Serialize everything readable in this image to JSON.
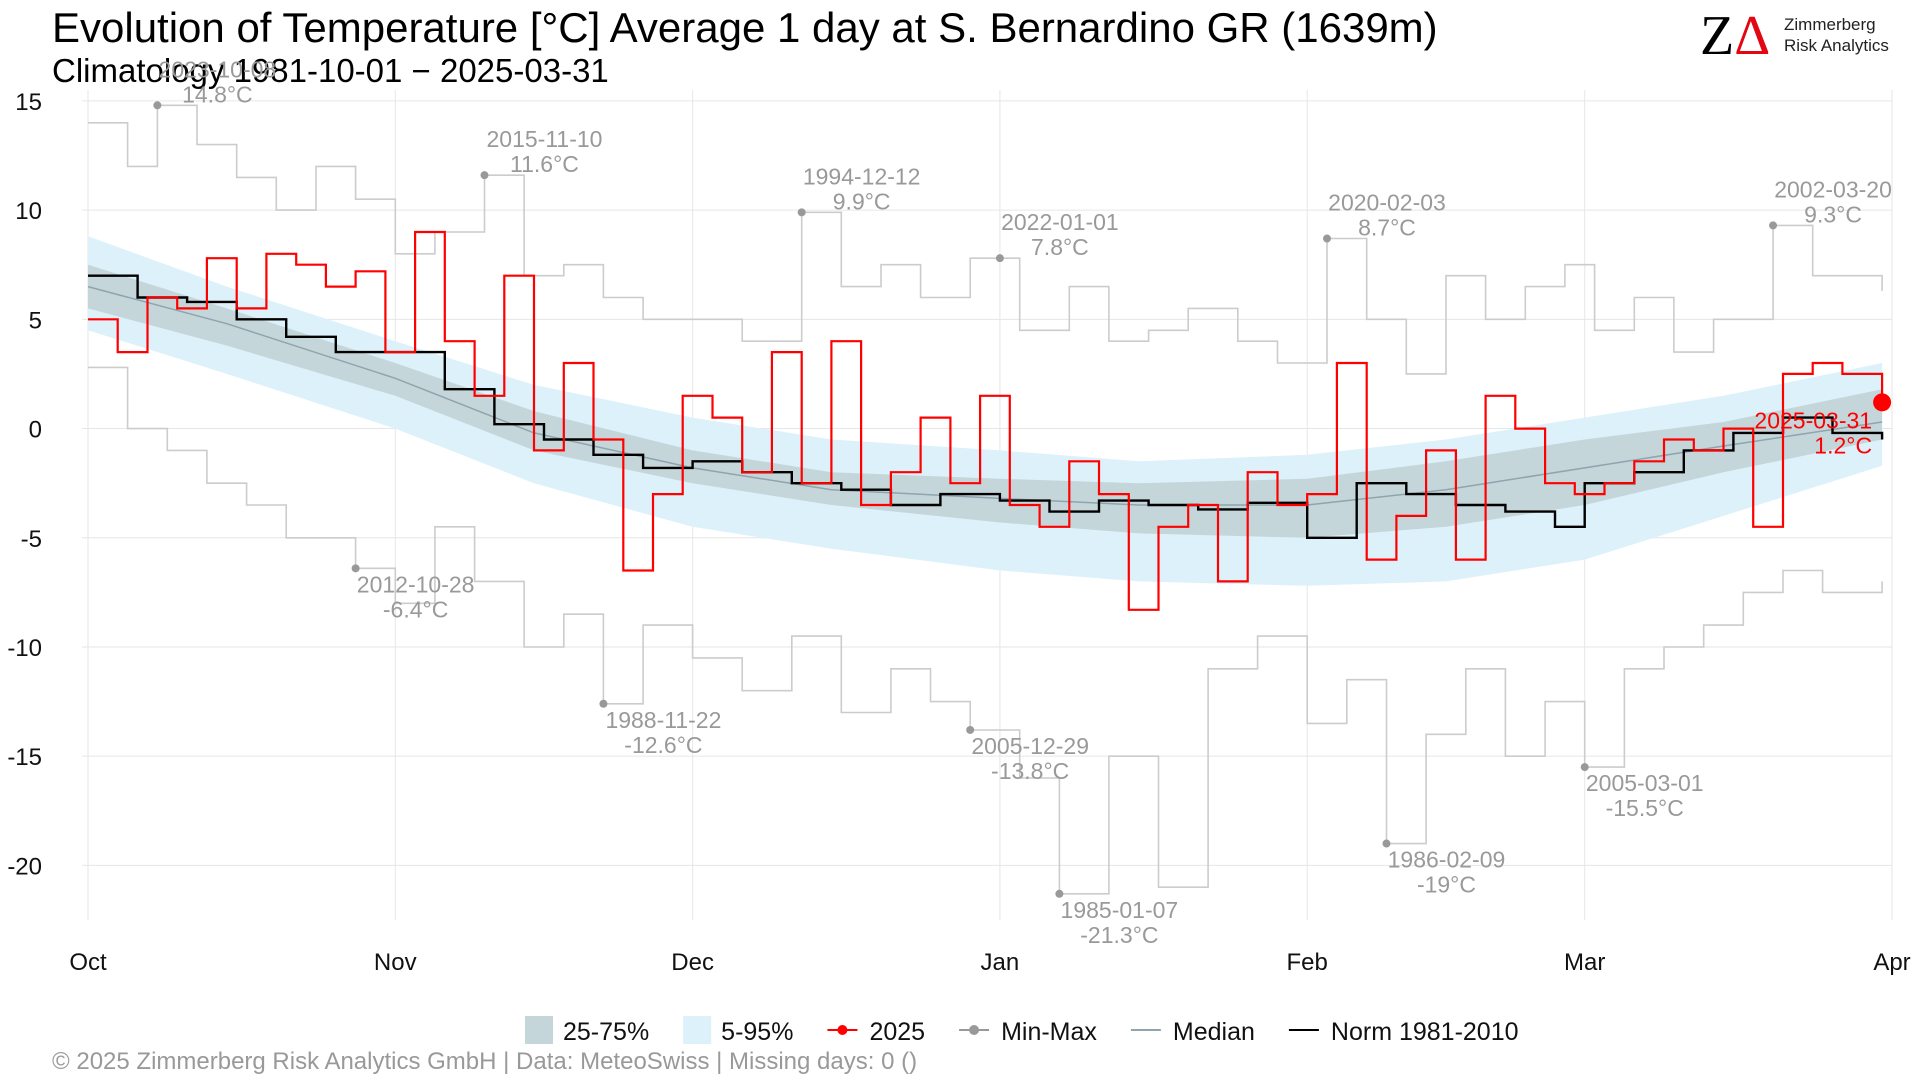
{
  "header": {
    "title": "Evolution of Temperature [°C] Average 1 day at S. Bernardino  GR (1639m)",
    "subtitle": "Climatology 1981-10-01 − 2025-03-31"
  },
  "logo": {
    "mark_z": "Z",
    "mark_a": "Δ",
    "line1": "Zimmerberg",
    "line2": "Risk Analytics"
  },
  "footer": {
    "text": "©  2025 Zimmerberg Risk Analytics GmbH | Data: MeteoSwiss | Missing days: 0 ()"
  },
  "colors": {
    "band_25_75": "#c5d6db",
    "band_5_95": "#dcf1fa",
    "year_2025": "#ff0000",
    "minmax": "#999999",
    "median": "#8fa4ad",
    "norm": "#000000",
    "grid": "#e6e6e6"
  },
  "chart_data": {
    "type": "line",
    "step": true,
    "title": "Evolution of Temperature [°C] Average 1 day at S. Bernardino  GR (1639m)",
    "xlabel": "",
    "ylabel": "",
    "x_start": "2024-10-01",
    "x_end": "2025-04-01",
    "ylim": [
      -22.5,
      15.5
    ],
    "y_ticks": [
      15,
      10,
      5,
      0,
      -5,
      -10,
      -15,
      -20
    ],
    "x_ticks": [
      {
        "date": "2024-10-01",
        "label": "Oct"
      },
      {
        "date": "2024-11-01",
        "label": "Nov"
      },
      {
        "date": "2024-12-01",
        "label": "Dec"
      },
      {
        "date": "2025-01-01",
        "label": "Jan"
      },
      {
        "date": "2025-02-01",
        "label": "Feb"
      },
      {
        "date": "2025-03-01",
        "label": "Mar"
      },
      {
        "date": "2025-04-01",
        "label": "Apr"
      }
    ],
    "grid": true,
    "legend_position": "bottom",
    "legend": [
      {
        "key": "band_25_75",
        "label": "25-75%",
        "kind": "box"
      },
      {
        "key": "band_5_95",
        "label": "5-95%",
        "kind": "box"
      },
      {
        "key": "year_2025",
        "label": "2025",
        "kind": "line-dot"
      },
      {
        "key": "minmax",
        "label": "Min-Max",
        "kind": "line-dot"
      },
      {
        "key": "median",
        "label": "Median",
        "kind": "line"
      },
      {
        "key": "norm",
        "label": "Norm 1981-2010",
        "kind": "line"
      }
    ],
    "series": [
      {
        "key": "p95",
        "dates": [
          "2024-10-01",
          "2024-10-15",
          "2024-11-01",
          "2024-11-15",
          "2024-12-01",
          "2024-12-15",
          "2025-01-01",
          "2025-01-15",
          "2025-02-01",
          "2025-02-15",
          "2025-03-01",
          "2025-03-15",
          "2025-03-31"
        ],
        "values": [
          8.8,
          6.5,
          4.0,
          2.0,
          0.5,
          -0.5,
          -1.0,
          -1.5,
          -1.2,
          -0.5,
          0.5,
          1.5,
          3.0
        ]
      },
      {
        "key": "p75",
        "dates": [
          "2024-10-01",
          "2024-10-15",
          "2024-11-01",
          "2024-11-15",
          "2024-12-01",
          "2024-12-15",
          "2025-01-01",
          "2025-01-15",
          "2025-02-01",
          "2025-02-15",
          "2025-03-01",
          "2025-03-15",
          "2025-03-31"
        ],
        "values": [
          7.5,
          5.5,
          3.0,
          0.8,
          -1.0,
          -2.0,
          -2.3,
          -2.5,
          -2.3,
          -1.5,
          -0.5,
          0.3,
          1.8
        ]
      },
      {
        "key": "p25",
        "dates": [
          "2024-10-01",
          "2024-10-15",
          "2024-11-01",
          "2024-11-15",
          "2024-12-01",
          "2024-12-15",
          "2025-01-01",
          "2025-01-15",
          "2025-02-01",
          "2025-02-15",
          "2025-03-01",
          "2025-03-15",
          "2025-03-31"
        ],
        "values": [
          5.5,
          3.8,
          1.5,
          -1.0,
          -2.5,
          -3.5,
          -4.3,
          -4.8,
          -5.0,
          -4.5,
          -3.5,
          -2.0,
          -0.5
        ]
      },
      {
        "key": "p5",
        "dates": [
          "2024-10-01",
          "2024-10-15",
          "2024-11-01",
          "2024-11-15",
          "2024-12-01",
          "2024-12-15",
          "2025-01-01",
          "2025-01-15",
          "2025-02-01",
          "2025-02-15",
          "2025-03-01",
          "2025-03-15",
          "2025-03-31"
        ],
        "values": [
          4.5,
          2.5,
          0.0,
          -2.5,
          -4.5,
          -5.5,
          -6.5,
          -7.0,
          -7.2,
          -7.0,
          -6.0,
          -4.0,
          -1.7
        ]
      },
      {
        "key": "median",
        "name": "Median",
        "dates": [
          "2024-10-01",
          "2024-10-15",
          "2024-11-01",
          "2024-11-15",
          "2024-12-01",
          "2024-12-15",
          "2025-01-01",
          "2025-01-15",
          "2025-02-01",
          "2025-02-15",
          "2025-03-01",
          "2025-03-15",
          "2025-03-31"
        ],
        "values": [
          6.5,
          4.8,
          2.3,
          -0.2,
          -1.8,
          -2.8,
          -3.2,
          -3.5,
          -3.5,
          -2.8,
          -1.8,
          -0.8,
          0.3
        ]
      },
      {
        "key": "norm",
        "name": "Norm 1981-2010",
        "dates": [
          "2024-10-01",
          "2024-10-06",
          "2024-10-11",
          "2024-10-16",
          "2024-10-21",
          "2024-10-26",
          "2024-11-01",
          "2024-11-06",
          "2024-11-11",
          "2024-11-16",
          "2024-11-21",
          "2024-11-26",
          "2024-12-01",
          "2024-12-06",
          "2024-12-11",
          "2024-12-16",
          "2024-12-21",
          "2024-12-26",
          "2025-01-01",
          "2025-01-06",
          "2025-01-11",
          "2025-01-16",
          "2025-01-21",
          "2025-01-26",
          "2025-02-01",
          "2025-02-06",
          "2025-02-11",
          "2025-02-16",
          "2025-02-21",
          "2025-02-26",
          "2025-03-01",
          "2025-03-06",
          "2025-03-11",
          "2025-03-16",
          "2025-03-21",
          "2025-03-26",
          "2025-03-31"
        ],
        "values": [
          7.0,
          6.0,
          5.8,
          5.0,
          4.2,
          3.5,
          3.5,
          1.8,
          0.2,
          -0.5,
          -1.2,
          -1.8,
          -1.5,
          -2.0,
          -2.5,
          -2.8,
          -3.5,
          -3.0,
          -3.3,
          -3.8,
          -3.3,
          -3.5,
          -3.7,
          -3.4,
          -5.0,
          -2.5,
          -3.0,
          -3.5,
          -3.8,
          -4.5,
          -2.5,
          -2.0,
          -1.0,
          -0.2,
          0.5,
          -0.2,
          -0.5
        ]
      },
      {
        "key": "year_2025",
        "name": "2025",
        "dates": [
          "2024-10-01",
          "2024-10-04",
          "2024-10-07",
          "2024-10-10",
          "2024-10-13",
          "2024-10-16",
          "2024-10-19",
          "2024-10-22",
          "2024-10-25",
          "2024-10-28",
          "2024-10-31",
          "2024-11-03",
          "2024-11-06",
          "2024-11-09",
          "2024-11-12",
          "2024-11-15",
          "2024-11-18",
          "2024-11-21",
          "2024-11-24",
          "2024-11-27",
          "2024-11-30",
          "2024-12-03",
          "2024-12-06",
          "2024-12-09",
          "2024-12-12",
          "2024-12-15",
          "2024-12-18",
          "2024-12-21",
          "2024-12-24",
          "2024-12-27",
          "2024-12-30",
          "2025-01-02",
          "2025-01-05",
          "2025-01-08",
          "2025-01-11",
          "2025-01-14",
          "2025-01-17",
          "2025-01-20",
          "2025-01-23",
          "2025-01-26",
          "2025-01-29",
          "2025-02-01",
          "2025-02-04",
          "2025-02-07",
          "2025-02-10",
          "2025-02-13",
          "2025-02-16",
          "2025-02-19",
          "2025-02-22",
          "2025-02-25",
          "2025-02-28",
          "2025-03-03",
          "2025-03-06",
          "2025-03-09",
          "2025-03-12",
          "2025-03-15",
          "2025-03-18",
          "2025-03-21",
          "2025-03-24",
          "2025-03-27",
          "2025-03-31"
        ],
        "values": [
          5.0,
          3.5,
          6.0,
          5.5,
          7.8,
          5.5,
          8.0,
          7.5,
          6.5,
          7.2,
          3.5,
          9.0,
          4.0,
          1.5,
          7.0,
          -1.0,
          3.0,
          -0.5,
          -6.5,
          -3.0,
          1.5,
          0.5,
          -2.0,
          3.5,
          -2.5,
          4.0,
          -3.5,
          -2.0,
          0.5,
          -2.5,
          1.5,
          -3.5,
          -4.5,
          -1.5,
          -3.0,
          -8.3,
          -4.5,
          -3.5,
          -7.0,
          -2.0,
          -3.5,
          -3.0,
          3.0,
          -6.0,
          -4.0,
          -1.0,
          -6.0,
          1.5,
          0.0,
          -2.5,
          -3.0,
          -2.5,
          -1.5,
          -0.5,
          -1.0,
          0.0,
          -4.5,
          2.5,
          3.0,
          2.5,
          1.2
        ]
      },
      {
        "key": "max",
        "name": "Max",
        "dates": [
          "2024-10-01",
          "2024-10-05",
          "2024-10-08",
          "2024-10-12",
          "2024-10-16",
          "2024-10-20",
          "2024-10-24",
          "2024-10-28",
          "2024-11-01",
          "2024-11-05",
          "2024-11-10",
          "2024-11-14",
          "2024-11-18",
          "2024-11-22",
          "2024-11-26",
          "2024-12-01",
          "2024-12-06",
          "2024-12-12",
          "2024-12-16",
          "2024-12-20",
          "2024-12-24",
          "2024-12-29",
          "2025-01-03",
          "2025-01-08",
          "2025-01-12",
          "2025-01-16",
          "2025-01-20",
          "2025-01-25",
          "2025-01-29",
          "2025-02-03",
          "2025-02-07",
          "2025-02-11",
          "2025-02-15",
          "2025-02-19",
          "2025-02-23",
          "2025-02-27",
          "2025-03-02",
          "2025-03-06",
          "2025-03-10",
          "2025-03-14",
          "2025-03-20",
          "2025-03-24",
          "2025-03-31"
        ],
        "values": [
          14.0,
          12.0,
          14.8,
          13.0,
          11.5,
          10.0,
          12.0,
          10.5,
          8.0,
          9.0,
          11.6,
          7.0,
          7.5,
          6.0,
          5.0,
          5.0,
          4.0,
          9.9,
          6.5,
          7.5,
          6.0,
          7.8,
          4.5,
          6.5,
          4.0,
          4.5,
          5.5,
          4.0,
          3.0,
          8.7,
          5.0,
          2.5,
          7.0,
          5.0,
          6.5,
          7.5,
          4.5,
          6.0,
          3.5,
          5.0,
          9.3,
          7.0,
          6.3
        ]
      },
      {
        "key": "min",
        "name": "Min",
        "dates": [
          "2024-10-01",
          "2024-10-05",
          "2024-10-09",
          "2024-10-13",
          "2024-10-17",
          "2024-10-21",
          "2024-10-28",
          "2024-11-01",
          "2024-11-05",
          "2024-11-09",
          "2024-11-14",
          "2024-11-18",
          "2024-11-22",
          "2024-11-26",
          "2024-12-01",
          "2024-12-06",
          "2024-12-11",
          "2024-12-16",
          "2024-12-21",
          "2024-12-25",
          "2024-12-29",
          "2025-01-03",
          "2025-01-07",
          "2025-01-12",
          "2025-01-17",
          "2025-01-22",
          "2025-01-27",
          "2025-02-01",
          "2025-02-05",
          "2025-02-09",
          "2025-02-13",
          "2025-02-17",
          "2025-02-21",
          "2025-02-25",
          "2025-03-01",
          "2025-03-05",
          "2025-03-09",
          "2025-03-13",
          "2025-03-17",
          "2025-03-21",
          "2025-03-25",
          "2025-03-31"
        ],
        "values": [
          2.8,
          0.0,
          -1.0,
          -2.5,
          -3.5,
          -5.0,
          -6.4,
          -8.0,
          -4.5,
          -7.0,
          -10.0,
          -8.5,
          -12.6,
          -9.0,
          -10.5,
          -12.0,
          -9.5,
          -13.0,
          -11.0,
          -12.5,
          -13.8,
          -16.0,
          -21.3,
          -15.0,
          -21.0,
          -11.0,
          -9.5,
          -13.5,
          -11.5,
          -19.0,
          -14.0,
          -11.0,
          -15.0,
          -12.5,
          -15.5,
          -11.0,
          -10.0,
          -9.0,
          -7.5,
          -6.5,
          -7.5,
          -7.0
        ]
      }
    ],
    "annotations": [
      {
        "date": "2024-10-08",
        "value": 14.8,
        "line1": "2023-10-08",
        "line2": "14.8°C",
        "color": "minmax"
      },
      {
        "date": "2024-11-10",
        "value": 11.6,
        "line1": "2015-11-10",
        "line2": "11.6°C",
        "color": "minmax"
      },
      {
        "date": "2024-12-12",
        "value": 9.9,
        "line1": "1994-12-12",
        "line2": "9.9°C",
        "color": "minmax"
      },
      {
        "date": "2025-01-01",
        "value": 7.8,
        "line1": "2022-01-01",
        "line2": "7.8°C",
        "color": "minmax"
      },
      {
        "date": "2025-02-03",
        "value": 8.7,
        "line1": "2020-02-03",
        "line2": "8.7°C",
        "color": "minmax"
      },
      {
        "date": "2025-03-20",
        "value": 9.3,
        "line1": "2002-03-20",
        "line2": "9.3°C",
        "color": "minmax"
      },
      {
        "date": "2024-10-28",
        "value": -6.4,
        "line1": "2012-10-28",
        "line2": "-6.4°C",
        "color": "minmax"
      },
      {
        "date": "2024-11-22",
        "value": -12.6,
        "line1": "1988-11-22",
        "line2": "-12.6°C",
        "color": "minmax"
      },
      {
        "date": "2024-12-29",
        "value": -13.8,
        "line1": "2005-12-29",
        "line2": "-13.8°C",
        "color": "minmax"
      },
      {
        "date": "2025-01-07",
        "value": -21.3,
        "line1": "1985-01-07",
        "line2": "-21.3°C",
        "color": "minmax"
      },
      {
        "date": "2025-02-09",
        "value": -19.0,
        "line1": "1986-02-09",
        "line2": "-19°C",
        "color": "minmax"
      },
      {
        "date": "2025-03-01",
        "value": -15.5,
        "line1": "2005-03-01",
        "line2": "-15.5°C",
        "color": "minmax"
      },
      {
        "date": "2025-03-31",
        "value": 1.2,
        "line1": "2025-03-31",
        "line2": "1.2°C",
        "color": "year_2025"
      }
    ]
  }
}
